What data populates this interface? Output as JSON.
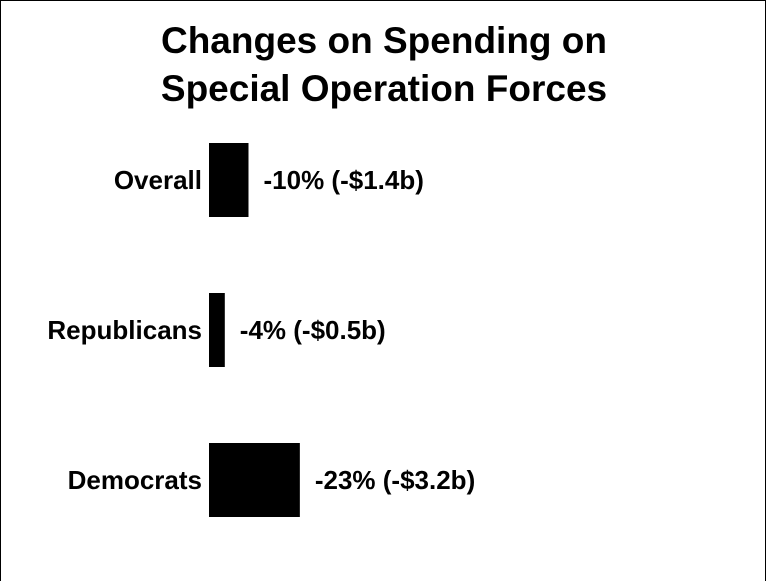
{
  "chart_data": {
    "type": "bar",
    "orientation": "horizontal",
    "title": [
      "Changes on Spending on",
      "Special Operation Forces"
    ],
    "categories": [
      "Overall",
      "Republicans",
      "Democrats"
    ],
    "values": [
      -10,
      -4,
      -23
    ],
    "value_labels": [
      "-10% (-$1.4b)",
      "-4% (-$0.5b)",
      "-23% (-$3.2b)"
    ],
    "units": "%",
    "bar_color": "#000000"
  }
}
